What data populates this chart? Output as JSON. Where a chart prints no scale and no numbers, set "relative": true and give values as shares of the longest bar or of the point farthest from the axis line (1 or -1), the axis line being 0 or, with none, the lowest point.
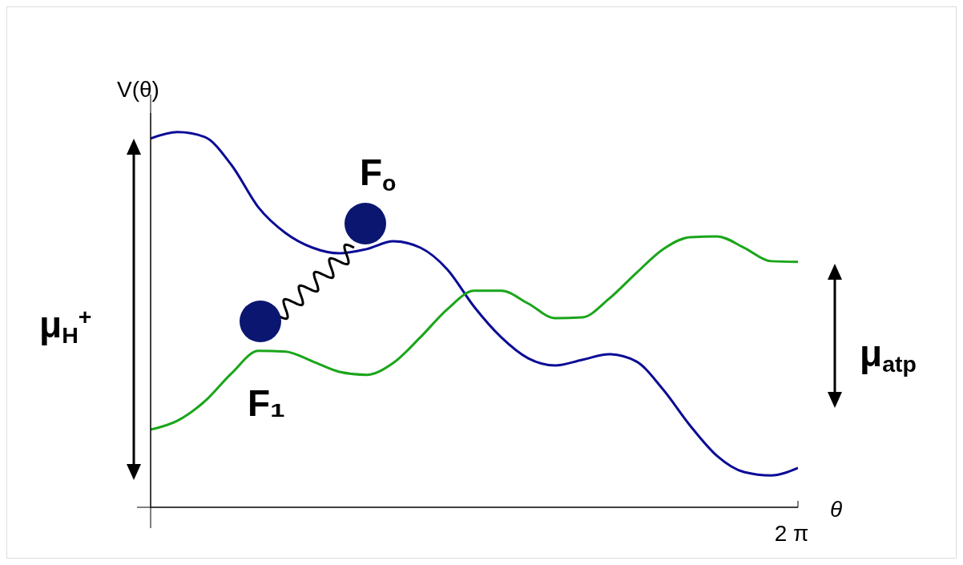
{
  "chart_data": {
    "type": "line",
    "relative": true,
    "xlabel": "θ",
    "ylabel": "V(θ)",
    "categories": [
      null,
      null,
      null,
      null,
      null,
      null,
      null,
      null,
      null,
      null,
      null,
      null,
      null,
      null,
      null,
      null,
      null,
      null,
      null,
      null,
      null,
      null,
      null,
      null,
      null
    ],
    "series": [
      {
        "name": "F$_{o}$",
        "color": "#0b0b96",
        "values": [
          0.983,
          1,
          0.987,
          0.912,
          0.799,
          0.731,
          0.692,
          0.677,
          0.688,
          0.709,
          0.692,
          0.634,
          0.534,
          0.453,
          0.397,
          0.378,
          0.393,
          0.408,
          0.389,
          0.314,
          0.218,
          0.137,
          0.094,
          0.085,
          0.105
        ]
      },
      {
        "name": "F₁",
        "color": "#1aa51a",
        "values": [
          0.207,
          0.231,
          0.282,
          0.357,
          0.417,
          0.415,
          0.389,
          0.361,
          0.353,
          0.385,
          0.453,
          0.528,
          0.577,
          0.577,
          0.543,
          0.504,
          0.506,
          0.556,
          0.624,
          0.688,
          0.72,
          0.722,
          0.692,
          0.656,
          0.654
        ]
      }
    ],
    "annotations": [
      "2 π",
      "μ$_{H}$$^{+}$",
      "μ$_{atp}$"
    ]
  }
}
